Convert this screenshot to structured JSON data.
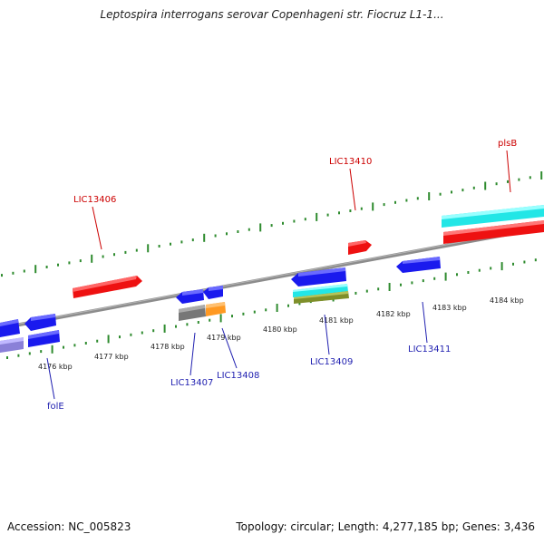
{
  "header": {
    "title": "Leptospira interrogans serovar Copenhageni str. Fiocruz L1-1..."
  },
  "footer": {
    "accession": "Accession: NC_005823",
    "summary": "Topology: circular; Length: 4,277,185 bp; Genes: 3,436"
  },
  "colors": {
    "backbone": "#8c8c8c",
    "tick": "#2e8b2e",
    "red_gene": "#ee1111",
    "blue_gene": "#1a1aee",
    "cyan_gene": "#22e6e6",
    "gray_gene": "#777777",
    "orange_gene": "#ff9922",
    "olive_gene": "#7f8f2a",
    "lavender_gene": "#8a80d8"
  },
  "scale": {
    "unit": "kbp",
    "ticks": [
      {
        "label": "4176 kbp"
      },
      {
        "label": "4177 kbp"
      },
      {
        "label": "4178 kbp"
      },
      {
        "label": "4179 kbp"
      },
      {
        "label": "4180 kbp"
      },
      {
        "label": "4181 kbp"
      },
      {
        "label": "4182 kbp"
      },
      {
        "label": "4183 kbp"
      },
      {
        "label": "4184 kbp"
      }
    ]
  },
  "gene_labels": [
    {
      "name": "LIC13406",
      "strand": "forward"
    },
    {
      "name": "LIC13410",
      "strand": "forward"
    },
    {
      "name": "plsB",
      "strand": "forward"
    },
    {
      "name": "folE",
      "strand": "reverse"
    },
    {
      "name": "LIC13407",
      "strand": "reverse"
    },
    {
      "name": "LIC13408",
      "strand": "reverse"
    },
    {
      "name": "LIC13409",
      "strand": "reverse"
    },
    {
      "name": "LIC13411",
      "strand": "reverse"
    }
  ]
}
